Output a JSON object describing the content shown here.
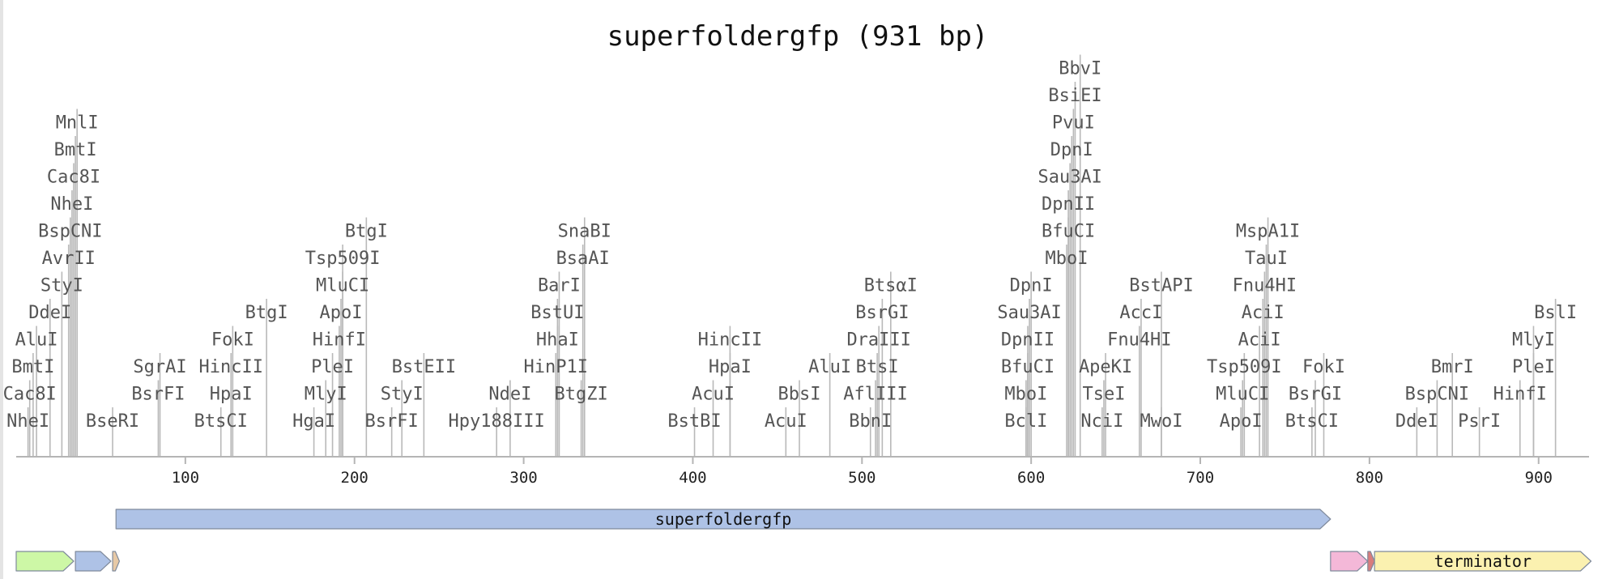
{
  "map": {
    "title": "superfoldergfp (931 bp)",
    "length_bp": 931,
    "axis_ticks": [
      100,
      200,
      300,
      400,
      500,
      600,
      700,
      800,
      900
    ],
    "colors": {
      "axis": "#b5b5b5",
      "site_line": "#b9b9b9",
      "site_label": "#555555",
      "cds_blue": "#aec2e6",
      "green": "#cdf7a6",
      "pink": "#f4b8d8",
      "yellow": "#fbf1b0",
      "tan": "#e7c9a6"
    },
    "sites": [
      {
        "name": "NheI",
        "pos": 7,
        "row": 0
      },
      {
        "name": "Cac8I",
        "pos": 8,
        "row": 1
      },
      {
        "name": "BmtI",
        "pos": 10,
        "row": 2
      },
      {
        "name": "AluI",
        "pos": 12,
        "row": 3
      },
      {
        "name": "DdeI",
        "pos": 20,
        "row": 4
      },
      {
        "name": "StyI",
        "pos": 27,
        "row": 5
      },
      {
        "name": "AvrII",
        "pos": 31,
        "row": 6
      },
      {
        "name": "BspCNI",
        "pos": 32,
        "row": 7
      },
      {
        "name": "NheI",
        "pos": 33,
        "row": 8
      },
      {
        "name": "Cac8I",
        "pos": 34,
        "row": 9
      },
      {
        "name": "BmtI",
        "pos": 35,
        "row": 10
      },
      {
        "name": "MnlI",
        "pos": 36,
        "row": 11
      },
      {
        "name": "BseRI",
        "pos": 57,
        "row": 0
      },
      {
        "name": "BsrFI",
        "pos": 84,
        "row": 1
      },
      {
        "name": "SgrAI",
        "pos": 85,
        "row": 2
      },
      {
        "name": "BtsCI",
        "pos": 121,
        "row": 0
      },
      {
        "name": "HpaI",
        "pos": 127,
        "row": 1
      },
      {
        "name": "HincII",
        "pos": 127,
        "row": 2
      },
      {
        "name": "FokI",
        "pos": 128,
        "row": 3
      },
      {
        "name": "BtgI",
        "pos": 148,
        "row": 4
      },
      {
        "name": "HgaI",
        "pos": 176,
        "row": 0
      },
      {
        "name": "MlyI",
        "pos": 183,
        "row": 1
      },
      {
        "name": "PleI",
        "pos": 187,
        "row": 2
      },
      {
        "name": "HinfI",
        "pos": 191,
        "row": 3
      },
      {
        "name": "ApoI",
        "pos": 192,
        "row": 4
      },
      {
        "name": "MluCI",
        "pos": 193,
        "row": 5
      },
      {
        "name": "Tsp509I",
        "pos": 193,
        "row": 6
      },
      {
        "name": "BtgI",
        "pos": 207,
        "row": 7
      },
      {
        "name": "BsrFI",
        "pos": 222,
        "row": 0
      },
      {
        "name": "StyI",
        "pos": 228,
        "row": 1
      },
      {
        "name": "BstEII",
        "pos": 241,
        "row": 2
      },
      {
        "name": "Hpy188III",
        "pos": 284,
        "row": 0
      },
      {
        "name": "NdeI",
        "pos": 292,
        "row": 1
      },
      {
        "name": "HinP1I",
        "pos": 319,
        "row": 2
      },
      {
        "name": "HhaI",
        "pos": 320,
        "row": 3
      },
      {
        "name": "BstUI",
        "pos": 320,
        "row": 4
      },
      {
        "name": "BarI",
        "pos": 321,
        "row": 5
      },
      {
        "name": "BtgZI",
        "pos": 334,
        "row": 1
      },
      {
        "name": "BsaAI",
        "pos": 335,
        "row": 6
      },
      {
        "name": "SnaBI",
        "pos": 336,
        "row": 7
      },
      {
        "name": "BstBI",
        "pos": 401,
        "row": 0
      },
      {
        "name": "AcuI",
        "pos": 412,
        "row": 1
      },
      {
        "name": "HpaI",
        "pos": 422,
        "row": 2
      },
      {
        "name": "HincII",
        "pos": 422,
        "row": 3
      },
      {
        "name": "AcuI",
        "pos": 455,
        "row": 0
      },
      {
        "name": "BbsI",
        "pos": 463,
        "row": 1
      },
      {
        "name": "AluI",
        "pos": 481,
        "row": 2
      },
      {
        "name": "BbnI",
        "pos": 505,
        "row": 0
      },
      {
        "name": "AflIII",
        "pos": 508,
        "row": 1
      },
      {
        "name": "BtsI",
        "pos": 509,
        "row": 2
      },
      {
        "name": "DraIII",
        "pos": 510,
        "row": 3
      },
      {
        "name": "BsrGI",
        "pos": 512,
        "row": 4
      },
      {
        "name": "BtsαI",
        "pos": 517,
        "row": 5
      },
      {
        "name": "BclI",
        "pos": 597,
        "row": 0
      },
      {
        "name": "MboI",
        "pos": 597,
        "row": 1
      },
      {
        "name": "BfuCI",
        "pos": 598,
        "row": 2
      },
      {
        "name": "DpnII",
        "pos": 598,
        "row": 3
      },
      {
        "name": "Sau3AI",
        "pos": 599,
        "row": 4
      },
      {
        "name": "DpnI",
        "pos": 600,
        "row": 5
      },
      {
        "name": "MboI",
        "pos": 621,
        "row": 6
      },
      {
        "name": "BfuCI",
        "pos": 622,
        "row": 7
      },
      {
        "name": "DpnII",
        "pos": 622,
        "row": 8
      },
      {
        "name": "Sau3AI",
        "pos": 623,
        "row": 9
      },
      {
        "name": "DpnI",
        "pos": 624,
        "row": 10
      },
      {
        "name": "PvuI",
        "pos": 625,
        "row": 11
      },
      {
        "name": "BsiEI",
        "pos": 626,
        "row": 12
      },
      {
        "name": "BbvI",
        "pos": 629,
        "row": 13
      },
      {
        "name": "NciI",
        "pos": 642,
        "row": 0
      },
      {
        "name": "TseI",
        "pos": 643,
        "row": 1
      },
      {
        "name": "ApeKI",
        "pos": 644,
        "row": 2
      },
      {
        "name": "Fnu4HI",
        "pos": 664,
        "row": 3
      },
      {
        "name": "AccI",
        "pos": 665,
        "row": 4
      },
      {
        "name": "MwoI",
        "pos": 677,
        "row": 0
      },
      {
        "name": "BstAPI",
        "pos": 677,
        "row": 5
      },
      {
        "name": "ApoI",
        "pos": 724,
        "row": 0
      },
      {
        "name": "MluCI",
        "pos": 725,
        "row": 1
      },
      {
        "name": "Tsp509I",
        "pos": 726,
        "row": 2
      },
      {
        "name": "AciI",
        "pos": 735,
        "row": 3
      },
      {
        "name": "AciI",
        "pos": 737,
        "row": 4
      },
      {
        "name": "Fnu4HI",
        "pos": 738,
        "row": 5
      },
      {
        "name": "TauI",
        "pos": 739,
        "row": 6
      },
      {
        "name": "MspA1I",
        "pos": 740,
        "row": 7
      },
      {
        "name": "BtsCI",
        "pos": 766,
        "row": 0
      },
      {
        "name": "BsrGI",
        "pos": 768,
        "row": 1
      },
      {
        "name": "FokI",
        "pos": 773,
        "row": 2
      },
      {
        "name": "DdeI",
        "pos": 828,
        "row": 0
      },
      {
        "name": "BspCNI",
        "pos": 840,
        "row": 1
      },
      {
        "name": "BmrI",
        "pos": 849,
        "row": 2
      },
      {
        "name": "PsrI",
        "pos": 865,
        "row": 0
      },
      {
        "name": "HinfI",
        "pos": 889,
        "row": 1
      },
      {
        "name": "PleI",
        "pos": 897,
        "row": 2
      },
      {
        "name": "MlyI",
        "pos": 897,
        "row": 3
      },
      {
        "name": "BslI",
        "pos": 910,
        "row": 4
      }
    ],
    "features": [
      {
        "label": "superfoldergfp",
        "start": 59,
        "end": 777,
        "lane": 0,
        "color": "#aec2e6"
      },
      {
        "label": "",
        "start": 0,
        "end": 34,
        "lane": 1,
        "color": "#cdf7a6"
      },
      {
        "label": "",
        "start": 35,
        "end": 56,
        "lane": 1,
        "color": "#aec2e6"
      },
      {
        "label": "",
        "start": 57,
        "end": 61,
        "lane": 1,
        "color": "#e7c9a6"
      },
      {
        "label": "",
        "start": 777,
        "end": 799,
        "lane": 1,
        "color": "#f4b8d8"
      },
      {
        "label": "",
        "start": 799,
        "end": 803,
        "lane": 1,
        "color": "#d97c7c"
      },
      {
        "label": "terminator",
        "start": 803,
        "end": 931,
        "lane": 1,
        "color": "#fbf1b0"
      }
    ]
  }
}
